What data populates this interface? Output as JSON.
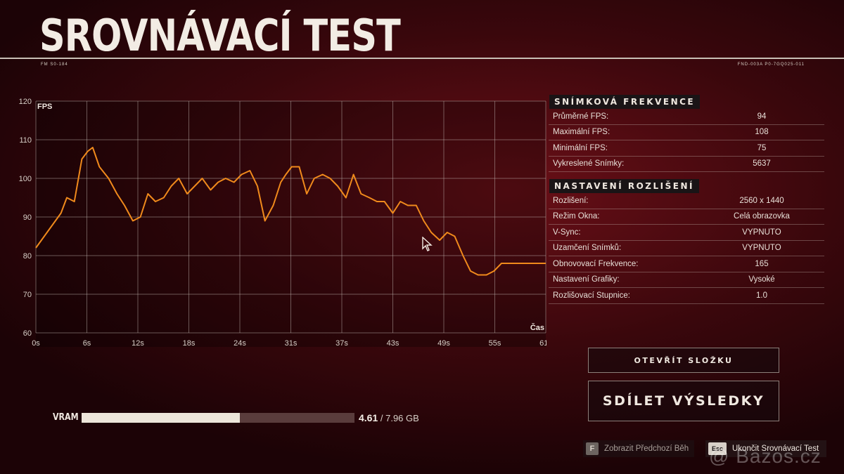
{
  "header": {
    "title": "SROVNÁVACÍ TEST",
    "meta_left": "FM S0-184",
    "meta_right": "FND-003A P0-7GQ025-011"
  },
  "chart_data": {
    "type": "line",
    "ylabel": "FPS",
    "xlabel": "Čas",
    "ylim": [
      60,
      120
    ],
    "yticks": [
      120,
      110,
      100,
      90,
      80,
      70,
      60
    ],
    "xticks": [
      "0s",
      "6s",
      "12s",
      "18s",
      "24s",
      "31s",
      "37s",
      "43s",
      "49s",
      "55s",
      "61s"
    ],
    "xlim": [
      0,
      61
    ],
    "grid": true,
    "line_color": "#f08a1c",
    "series": [
      {
        "x": [
          0,
          1,
          2,
          3,
          3.7,
          4.6,
          5.5,
          6.2,
          6.8,
          7.6,
          8.7,
          9.7,
          10.6,
          11.6,
          12.5,
          13.4,
          14.3,
          15.3,
          16.2,
          17.1,
          18.1,
          19.0,
          19.9,
          20.9,
          21.8,
          22.7,
          23.7,
          24.6,
          25.6,
          26.5,
          27.4,
          28.4,
          29.3,
          29.9,
          30.6,
          31.5,
          32.4,
          33.3,
          34.3,
          35.2,
          36.1,
          37.1,
          38.0,
          38.9,
          39.9,
          40.8,
          41.7,
          42.7,
          43.6,
          44.5,
          45.5,
          46.4,
          47.3,
          48.3,
          49.2,
          50.1,
          51.1,
          52.0,
          52.9,
          53.9,
          54.8,
          55.7,
          56.7,
          57.6,
          58.5,
          59.5,
          60.4,
          61
        ],
        "y": [
          82,
          85,
          88,
          91,
          95,
          94,
          105,
          107,
          108,
          103,
          100,
          96,
          93,
          89,
          90,
          96,
          94,
          95,
          98,
          100,
          96,
          98,
          100,
          97,
          99,
          100,
          99,
          101,
          102,
          98,
          89,
          93,
          99,
          101,
          103,
          103,
          96,
          100,
          101,
          100,
          98,
          95,
          101,
          96,
          95,
          94,
          94,
          91,
          94,
          93,
          93,
          89,
          86,
          84,
          86,
          85,
          80,
          76,
          75,
          75,
          76,
          78,
          78,
          78,
          78,
          78,
          78,
          78
        ]
      }
    ]
  },
  "frame_rate": {
    "heading": "SNÍMKOVÁ FREKVENCE",
    "rows": [
      {
        "label": "Průměrné FPS:",
        "value": "94"
      },
      {
        "label": "Maximální FPS:",
        "value": "108"
      },
      {
        "label": "Minimální FPS:",
        "value": "75"
      },
      {
        "label": "Vykreslené Snímky:",
        "value": "5637"
      }
    ]
  },
  "resolution": {
    "heading": "NASTAVENÍ ROZLIŠENÍ",
    "rows": [
      {
        "label": "Rozlišení:",
        "value": "2560 x 1440"
      },
      {
        "label": "Režim Okna:",
        "value": "Celá obrazovka"
      },
      {
        "label": "V-Sync:",
        "value": "VYPNUTO"
      },
      {
        "label": "Uzamčení Snímků:",
        "value": "VYPNUTO"
      },
      {
        "label": "Obnovovací Frekvence:",
        "value": "165"
      },
      {
        "label": "Nastavení Grafiky:",
        "value": "Vysoké"
      },
      {
        "label": "Rozlišovací Stupnice:",
        "value": "1.0"
      }
    ]
  },
  "buttons": {
    "open_folder": "OTEVŘÍT SLOŽKU",
    "share_results": "SDÍLET VÝSLEDKY"
  },
  "vram": {
    "label": "VRAM",
    "used": "4.61",
    "total": "/ 7.96 GB",
    "fraction": 0.579
  },
  "hints": {
    "prev_key": "F",
    "prev_label": "Zobrazit Předchozí Běh",
    "exit_key": "Esc",
    "exit_label": "Ukončit Srovnávací Test"
  },
  "watermark": "@ Bazos.cz"
}
